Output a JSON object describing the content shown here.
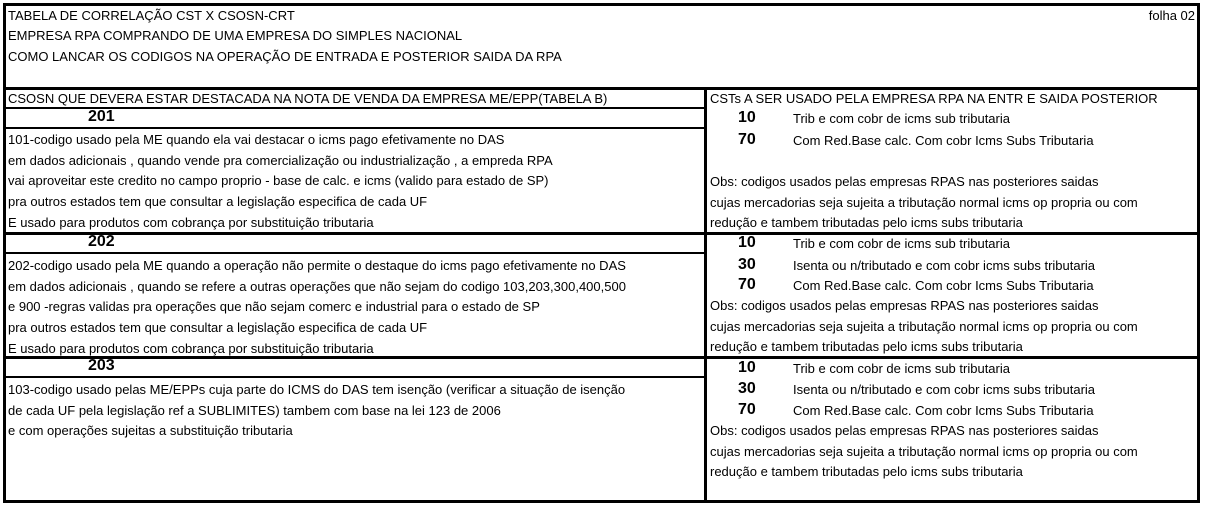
{
  "header": {
    "title": "TABELA DE CORRELAÇÃO CST X CSOSN-CRT",
    "subtitle": "EMPRESA RPA COMPRANDO DE UMA EMPRESA DO SIMPLES NACIONAL",
    "subtitle2": "COMO LANCAR OS CODIGOS NA OPERAÇÃO DE ENTRADA E POSTERIOR SAIDA DA RPA",
    "sheet": "folha 02"
  },
  "columns": {
    "left": "CSOSN QUE DEVERA ESTAR DESTACADA NA NOTA DE VENDA DA EMPRESA ME/EPP(TABELA B)",
    "right": "CSTs A SER USADO PELA EMPRESA RPA NA ENTR E SAIDA POSTERIOR"
  },
  "blocks": [
    {
      "csosn": "201",
      "lines": [
        "101-codigo usado pela ME quando ela vai destacar o icms pago efetivamente no DAS",
        "em dados adicionais , quando vende pra comercialização ou industrialização , a empreda RPA",
        "vai aproveitar este credito no campo proprio - base de calc. e icms (valido para estado de SP)",
        "pra outros estados tem que consultar a legislação especifica de cada UF",
        "E usado para produtos com cobrança por substituição tributaria"
      ],
      "csts": [
        {
          "code": "10",
          "desc": "Trib e com cobr de icms sub tributaria"
        },
        {
          "code": "70",
          "desc": "Com Red.Base calc. Com cobr Icms Subs Tributaria"
        }
      ],
      "obs": [
        "Obs: codigos usados pelas empresas RPAS nas posteriores saidas",
        "cujas mercadorias seja sujeita a tributação normal icms op propria ou com",
        "redução e tambem tributadas pelo icms subs tributaria"
      ]
    },
    {
      "csosn": "202",
      "lines": [
        "202-codigo usado pela ME quando a operação não permite o destaque do icms pago efetivamente no DAS",
        "em dados adicionais , quando se refere a outras operações que não sejam do codigo 103,203,300,400,500",
        "e 900 -regras validas pra operações que não sejam comerc e industrial para o estado de SP",
        "pra outros estados tem que consultar a legislação especifica de cada UF",
        "E usado para produtos com cobrança por substituição tributaria"
      ],
      "csts": [
        {
          "code": "10",
          "desc": "Trib e com cobr de icms sub tributaria"
        },
        {
          "code": "30",
          "desc": "Isenta ou n/tributado e com cobr icms subs tributaria"
        },
        {
          "code": "70",
          "desc": "Com Red.Base calc. Com cobr Icms Subs Tributaria"
        }
      ],
      "obs": [
        "Obs: codigos usados pelas empresas RPAS nas posteriores saidas",
        "cujas mercadorias seja sujeita a tributação normal icms op propria ou com",
        "redução e tambem tributadas pelo icms subs tributaria"
      ]
    },
    {
      "csosn": "203",
      "lines": [
        "103-codigo usado pelas ME/EPPs cuja parte do ICMS do DAS tem isenção (verificar a situação de isenção",
        "de cada UF pela legislação ref a SUBLIMITES) tambem com base na lei 123 de 2006",
        "e com operações sujeitas a substituição tributaria"
      ],
      "csts": [
        {
          "code": "10",
          "desc": "Trib e com cobr de icms sub tributaria"
        },
        {
          "code": "30",
          "desc": "Isenta ou n/tributado e com cobr icms subs tributaria"
        },
        {
          "code": "70",
          "desc": "Com Red.Base calc. Com cobr Icms Subs Tributaria"
        }
      ],
      "obs": [
        "Obs: codigos usados pelas empresas RPAS nas posteriores saidas",
        "cujas mercadorias seja sujeita a tributação normal icms op propria ou com",
        "redução e tambem tributadas pelo icms subs tributaria"
      ]
    }
  ]
}
